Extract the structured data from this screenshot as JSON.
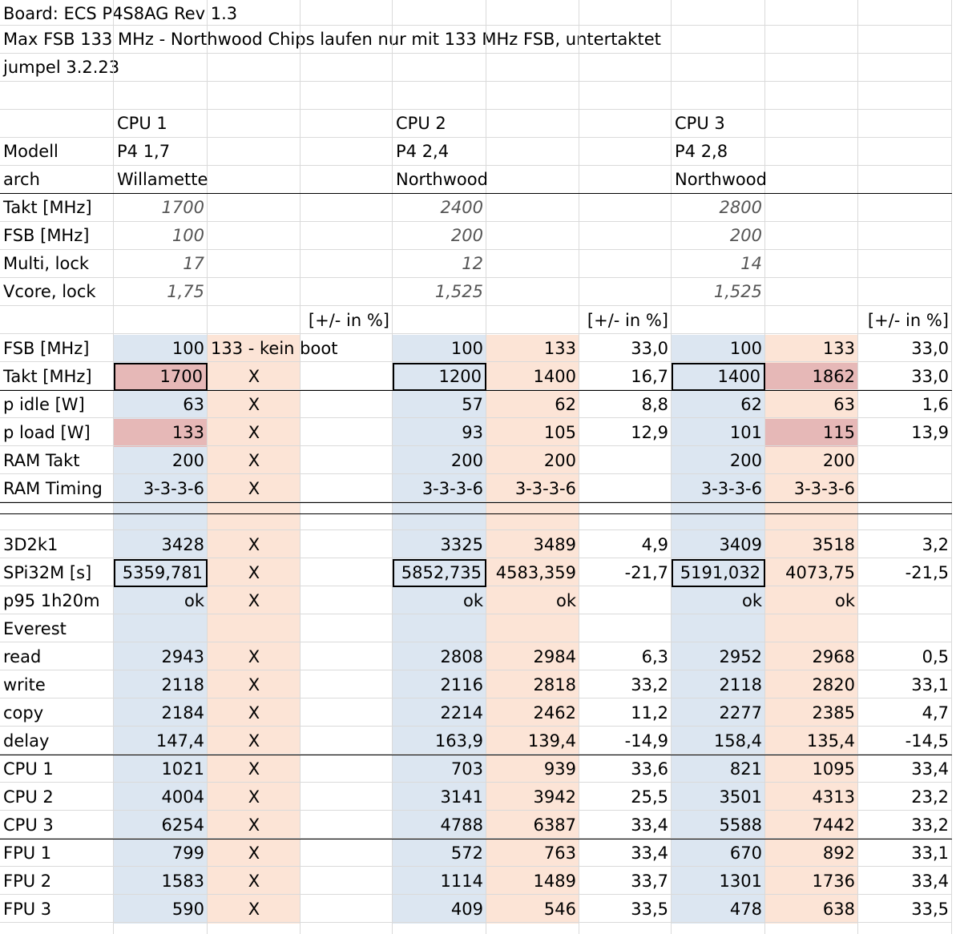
{
  "title_lines": [
    "Board: ECS P4S8AG Rev 1.3",
    "Max FSB 133 MHz - Northwood Chips laufen nur mit 133 MHz FSB, untertaktet",
    "jumpel 3.2.23"
  ],
  "colors": {
    "blue_fill": "#dce6f1",
    "peach_fill": "#fce4d6",
    "red_fill": "#e6b8b7",
    "gridline": "#dadada"
  },
  "header_rows": [
    {
      "label": "",
      "cpus": [
        "CPU 1",
        "CPU 2",
        "CPU 3"
      ]
    },
    {
      "label": "Modell",
      "cpus": [
        "P4 1,7",
        "P4 2,4",
        "P4 2,8"
      ]
    },
    {
      "label": "arch",
      "cpus": [
        "Willamette",
        "Northwood",
        "Northwood"
      ]
    }
  ],
  "spec_rows": [
    {
      "label": "Takt [MHz]",
      "values": [
        "1700",
        "2400",
        "2800"
      ]
    },
    {
      "label": "FSB [MHz]",
      "values": [
        "100",
        "200",
        "200"
      ]
    },
    {
      "label": "Multi, lock",
      "values": [
        "17",
        "12",
        "14"
      ]
    },
    {
      "label": "Vcore, lock",
      "values": [
        "1,75",
        "1,525",
        "1,525"
      ]
    }
  ],
  "pct_header": "[+/- in %]",
  "data_rows": [
    {
      "label": "FSB [MHz]",
      "v": [
        "100",
        "133 - kein boot",
        "",
        "100",
        "133",
        "33,0",
        "100",
        "133",
        "33,0"
      ]
    },
    {
      "label": "Takt [MHz]",
      "v": [
        "1700",
        "X",
        "",
        "1200",
        "1400",
        "16,7",
        "1400",
        "1862",
        "33,0"
      ]
    },
    {
      "label": "p idle [W]",
      "v": [
        "63",
        "X",
        "",
        "57",
        "62",
        "8,8",
        "62",
        "63",
        "1,6"
      ]
    },
    {
      "label": "p load [W]",
      "v": [
        "133",
        "X",
        "",
        "93",
        "105",
        "12,9",
        "101",
        "115",
        "13,9"
      ]
    },
    {
      "label": "RAM Takt",
      "v": [
        "200",
        "X",
        "",
        "200",
        "200",
        "",
        "200",
        "200",
        ""
      ]
    },
    {
      "label": "RAM Timing",
      "v": [
        "3-3-3-6",
        "X",
        "",
        "3-3-3-6",
        "3-3-3-6",
        "",
        "3-3-3-6",
        "3-3-3-6",
        ""
      ]
    },
    {
      "label": "",
      "v": [
        "",
        "",
        "",
        "",
        "",
        "",
        "",
        "",
        ""
      ]
    },
    {
      "label": "3D2k1",
      "v": [
        "3428",
        "X",
        "",
        "3325",
        "3489",
        "4,9",
        "3409",
        "3518",
        "3,2"
      ]
    },
    {
      "label": "SPi32M [s]",
      "v": [
        "5359,781",
        "X",
        "",
        "5852,735",
        "4583,359",
        "-21,7",
        "5191,032",
        "4073,75",
        "-21,5"
      ]
    },
    {
      "label": "p95 1h20m",
      "v": [
        "ok",
        "X",
        "",
        "ok",
        "ok",
        "",
        "ok",
        "ok",
        ""
      ]
    },
    {
      "label": "Everest",
      "v": [
        "",
        "",
        "",
        "",
        "",
        "",
        "",
        "",
        ""
      ]
    },
    {
      "label": "read",
      "v": [
        "2943",
        "X",
        "",
        "2808",
        "2984",
        "6,3",
        "2952",
        "2968",
        "0,5"
      ]
    },
    {
      "label": "write",
      "v": [
        "2118",
        "X",
        "",
        "2116",
        "2818",
        "33,2",
        "2118",
        "2820",
        "33,1"
      ]
    },
    {
      "label": "copy",
      "v": [
        "2184",
        "X",
        "",
        "2214",
        "2462",
        "11,2",
        "2277",
        "2385",
        "4,7"
      ]
    },
    {
      "label": "delay",
      "v": [
        "147,4",
        "X",
        "",
        "163,9",
        "139,4",
        "-14,9",
        "158,4",
        "135,4",
        "-14,5"
      ]
    },
    {
      "label": "CPU 1",
      "v": [
        "1021",
        "X",
        "",
        "703",
        "939",
        "33,6",
        "821",
        "1095",
        "33,4"
      ]
    },
    {
      "label": "CPU 2",
      "v": [
        "4004",
        "X",
        "",
        "3141",
        "3942",
        "25,5",
        "3501",
        "4313",
        "23,2"
      ]
    },
    {
      "label": "CPU 3",
      "v": [
        "6254",
        "X",
        "",
        "4788",
        "6387",
        "33,4",
        "5588",
        "7442",
        "33,2"
      ]
    },
    {
      "label": "FPU 1",
      "v": [
        "799",
        "X",
        "",
        "572",
        "763",
        "33,4",
        "670",
        "892",
        "33,1"
      ]
    },
    {
      "label": "FPU 2",
      "v": [
        "1583",
        "X",
        "",
        "1114",
        "1489",
        "33,7",
        "1301",
        "1736",
        "33,4"
      ]
    },
    {
      "label": "FPU 3",
      "v": [
        "590",
        "X",
        "",
        "409",
        "546",
        "33,5",
        "478",
        "638",
        "33,5"
      ]
    }
  ]
}
